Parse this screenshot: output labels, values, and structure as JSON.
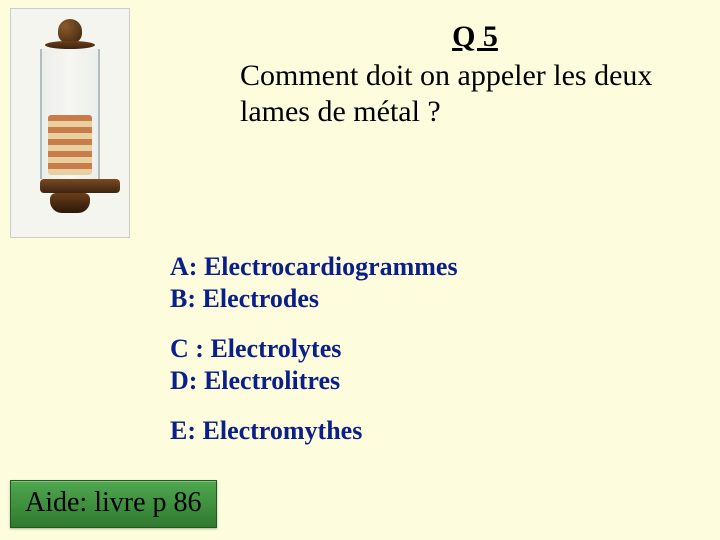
{
  "slide": {
    "background_color": "#fdfcdc",
    "question_number": "Q 5",
    "question_text": "Comment doit on appeler les deux lames de métal ?",
    "title_fontsize": 30,
    "title_color": "#000000",
    "image": {
      "semantic": "voltaic-pile-photo",
      "alt": "Pile voltaïque"
    },
    "answers": {
      "color": "#0b1f8a",
      "fontsize": 26,
      "font_weight": "bold",
      "groups": [
        [
          {
            "label": "A:",
            "text": "Electrocardiogrammes"
          },
          {
            "label": "B:",
            "text": "Electrodes"
          }
        ],
        [
          {
            "label": "C :",
            "text": "Electrolytes"
          },
          {
            "label": "D:",
            "text": "Electrolitres"
          }
        ],
        [
          {
            "label": "E:",
            "text": "Electromythes"
          }
        ]
      ]
    },
    "help_button": {
      "label": "Aide: livre p 86",
      "bg_color": "#3f9a3f",
      "text_color": "#000000",
      "fontsize": 28
    }
  }
}
